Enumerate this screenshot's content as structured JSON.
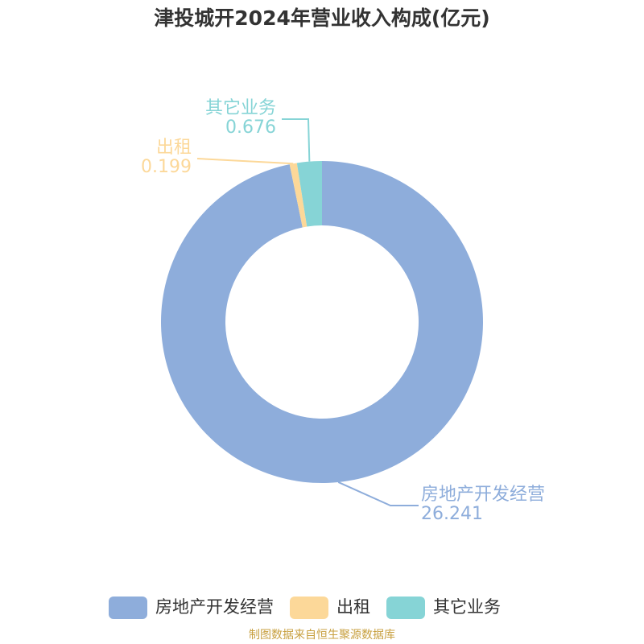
{
  "chart_data": {
    "type": "donut",
    "title": "津投城开2024年营业收入构成(亿元)",
    "categories": [
      "房地产开发经营",
      "出租",
      "其它业务"
    ],
    "values": [
      26.241,
      0.199,
      0.676
    ],
    "colors": [
      "#8eaddb",
      "#fcd899",
      "#86d4d6"
    ],
    "source": "制图数据来自恒生聚源数据库"
  }
}
